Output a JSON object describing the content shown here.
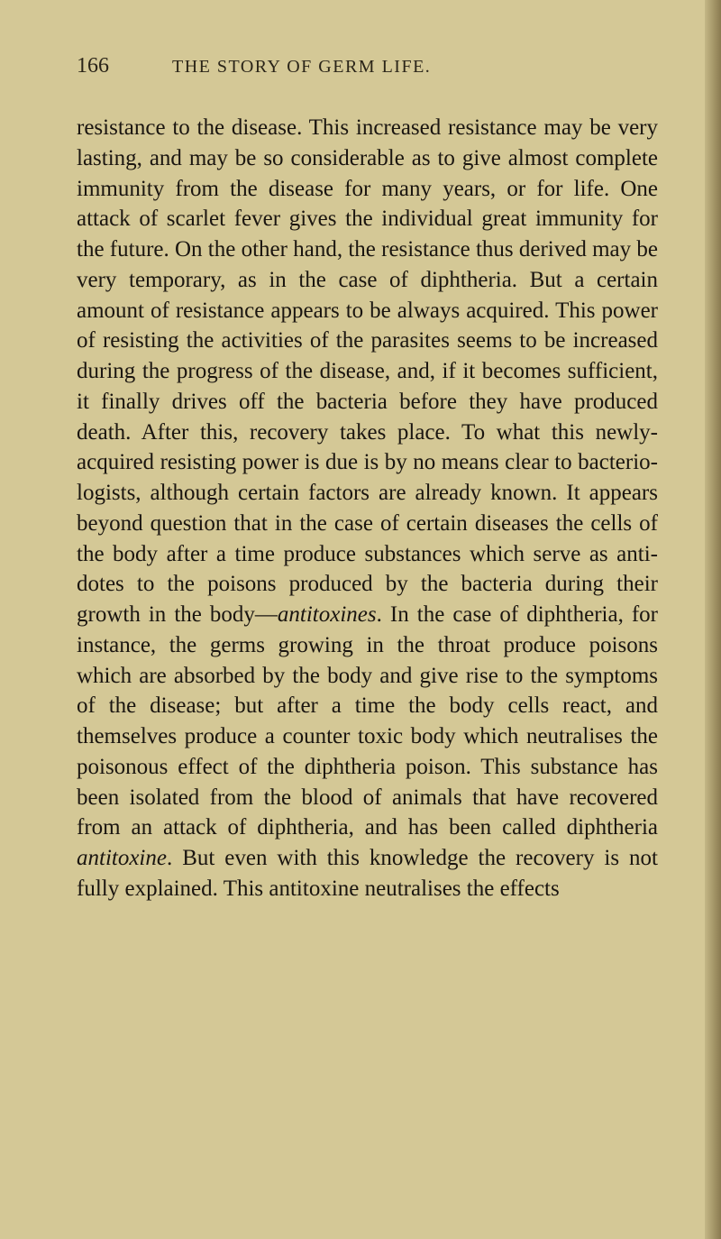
{
  "page": {
    "number": "166",
    "running_title": "THE STORY OF GERM LIFE.",
    "background_color": "#d4c896",
    "text_color": "#1a1510",
    "header_color": "#2a2418"
  },
  "body": {
    "p1_a": "resistance to the disease. This increased resist­ance may be very lasting, and may be so con­siderable as to give almost complete immunity from the disease for many years, or for life. One attack of scarlet fever gives the individual great immunity for the future. On the other hand, the resistance thus derived may be very tempor­ary, as in the case of diphtheria. But a certain amount of resistance appears to be always ac­quired. This power of resisting the activities of the parasites seems to be increased during the progress of the disease, and, if it becomes suffi­cient, it finally drives off the bacteria before they have produced death. After this, recovery takes place. To what this newly-acquired resisting power is due is by no means clear to bacterio­logists, although certain factors are already known. It appears beyond question that in the case of certain diseases the cells of the body after a time produce substances which serve as anti­dotes to the poisons produced by the bacteria during their growth in the body—",
    "italic1": "antitoxines",
    "p1_b": ". In the case of diphtheria, for instance, the germs growing in the throat produce poisons which are absorbed by the body and give rise to the symp­toms of the disease; but after a time the body cells react, and themselves produce a counter toxic body which neutralises the poisonous effect of the diphtheria poison. This substance has been isolated from the blood of animals that have recovered from an attack of diphtheria, and has been called diphtheria ",
    "italic2": "antitoxine",
    "p1_c": ". But even with this knowledge the recovery is not fully ex­plained. This antitoxine neutralises the effects"
  },
  "typography": {
    "body_fontsize": 25,
    "header_fontsize": 20,
    "page_num_fontsize": 24,
    "line_height": 1.35,
    "font_family": "Times New Roman"
  }
}
